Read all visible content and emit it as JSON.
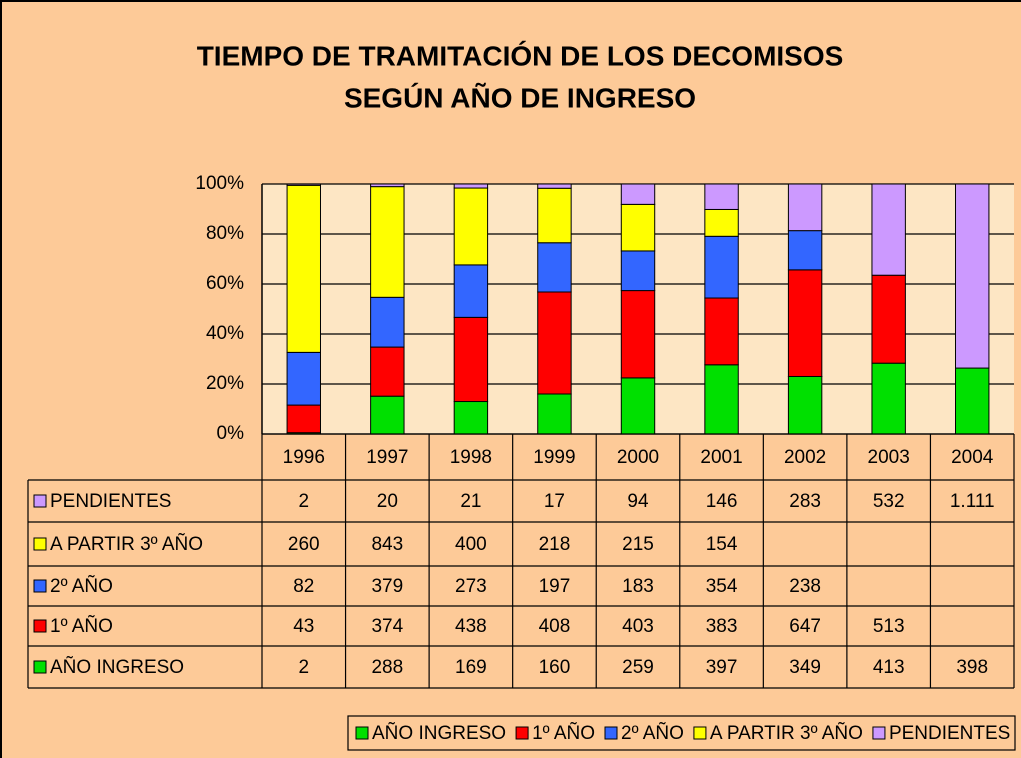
{
  "chart_data": {
    "type": "bar",
    "stacked": "percent",
    "title": [
      "TIEMPO DE TRAMITACIÓN DE LOS DECOMISOS",
      "SEGÚN AÑO DE INGRESO"
    ],
    "categories": [
      "1996",
      "1997",
      "1998",
      "1999",
      "2000",
      "2001",
      "2002",
      "2003",
      "2004"
    ],
    "series": [
      {
        "name": "AÑO INGRESO",
        "color": "#00e000",
        "values": [
          2,
          288,
          169,
          160,
          259,
          397,
          349,
          413,
          398
        ]
      },
      {
        "name": "1º AÑO",
        "color": "#ff0000",
        "values": [
          43,
          374,
          438,
          408,
          403,
          383,
          647,
          513,
          null
        ]
      },
      {
        "name": "2º AÑO",
        "color": "#3366ff",
        "values": [
          82,
          379,
          273,
          197,
          183,
          354,
          238,
          null,
          null
        ]
      },
      {
        "name": "A PARTIR 3º AÑO",
        "color": "#ffff00",
        "values": [
          260,
          843,
          400,
          218,
          215,
          154,
          null,
          null,
          null
        ]
      },
      {
        "name": "PENDIENTES",
        "color": "#cc99ff",
        "values": [
          2,
          20,
          21,
          17,
          94,
          146,
          283,
          532,
          1111
        ],
        "value_labels": [
          "2",
          "20",
          "21",
          "17",
          "94",
          "146",
          "283",
          "532",
          "1.111"
        ]
      }
    ],
    "ylim": [
      0,
      100
    ],
    "yticks": [
      {
        "value": 0,
        "label": "0%"
      },
      {
        "value": 20,
        "label": "20%"
      },
      {
        "value": 40,
        "label": "40%"
      },
      {
        "value": 60,
        "label": "60%"
      },
      {
        "value": 80,
        "label": "80%"
      },
      {
        "value": 100,
        "label": "100%"
      }
    ],
    "grid": true,
    "legend": "bottom",
    "data_table": true
  }
}
